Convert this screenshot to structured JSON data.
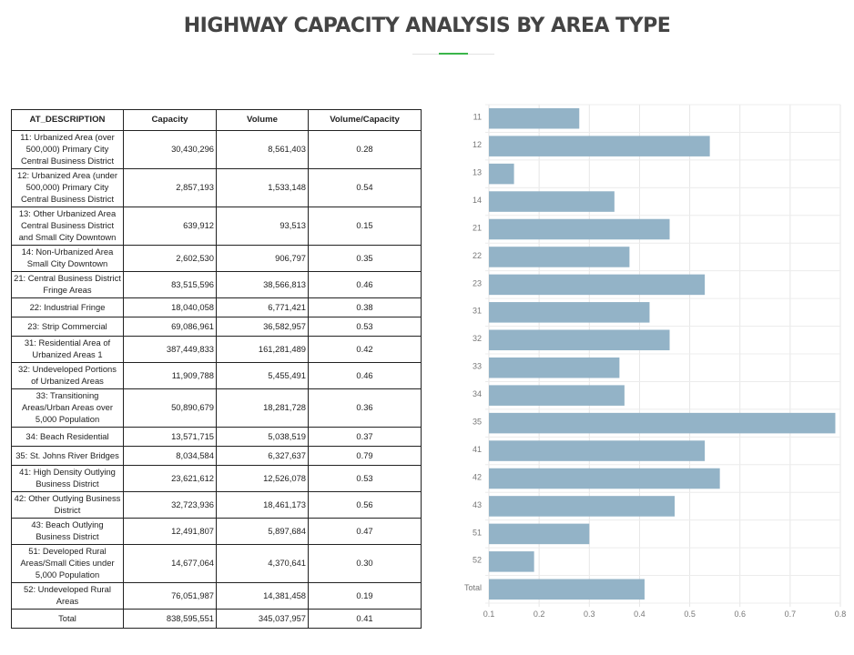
{
  "page": {
    "title": "HIGHWAY CAPACITY ANALYSIS BY AREA TYPE"
  },
  "table": {
    "headers": [
      "AT_DESCRIPTION",
      "Capacity",
      "Volume",
      "Volume/Capacity"
    ],
    "rows": [
      {
        "description": "11: Urbanized Area (over 500,000) Primary City Central Business District",
        "capacity": "30,430,296",
        "volume": "8,561,403",
        "ratio": "0.28"
      },
      {
        "description": "12: Urbanized Area (under 500,000) Primary City Central Business District",
        "capacity": "2,857,193",
        "volume": "1,533,148",
        "ratio": "0.54"
      },
      {
        "description": "13: Other Urbanized Area Central Business District and Small City Downtown",
        "capacity": "639,912",
        "volume": "93,513",
        "ratio": "0.15"
      },
      {
        "description": "14: Non-Urbanized Area Small City Downtown",
        "capacity": "2,602,530",
        "volume": "906,797",
        "ratio": "0.35"
      },
      {
        "description": "21: Central Business District Fringe Areas",
        "capacity": "83,515,596",
        "volume": "38,566,813",
        "ratio": "0.46"
      },
      {
        "description": "22: Industrial Fringe",
        "capacity": "18,040,058",
        "volume": "6,771,421",
        "ratio": "0.38"
      },
      {
        "description": "23: Strip Commercial",
        "capacity": "69,086,961",
        "volume": "36,582,957",
        "ratio": "0.53"
      },
      {
        "description": "31: Residential Area of Urbanized Areas 1",
        "capacity": "387,449,833",
        "volume": "161,281,489",
        "ratio": "0.42"
      },
      {
        "description": "32: Undeveloped Portions of Urbanized Areas",
        "capacity": "11,909,788",
        "volume": "5,455,491",
        "ratio": "0.46"
      },
      {
        "description": "33: Transitioning Areas/Urban Areas over 5,000 Population",
        "capacity": "50,890,679",
        "volume": "18,281,728",
        "ratio": "0.36"
      },
      {
        "description": "34: Beach Residential",
        "capacity": "13,571,715",
        "volume": "5,038,519",
        "ratio": "0.37"
      },
      {
        "description": "35: St. Johns River Bridges",
        "capacity": "8,034,584",
        "volume": "6,327,637",
        "ratio": "0.79"
      },
      {
        "description": "41: High Density Outlying Business District",
        "capacity": "23,621,612",
        "volume": "12,526,078",
        "ratio": "0.53"
      },
      {
        "description": "42: Other Outlying Business District",
        "capacity": "32,723,936",
        "volume": "18,461,173",
        "ratio": "0.56"
      },
      {
        "description": "43: Beach Outlying Business District",
        "capacity": "12,491,807",
        "volume": "5,897,684",
        "ratio": "0.47"
      },
      {
        "description": "51: Developed Rural Areas/Small Cities under 5,000 Population",
        "capacity": "14,677,064",
        "volume": "4,370,641",
        "ratio": "0.30"
      },
      {
        "description": "52: Undeveloped Rural Areas",
        "capacity": "76,051,987",
        "volume": "14,381,458",
        "ratio": "0.19"
      },
      {
        "description": "Total",
        "capacity": "838,595,551",
        "volume": "345,037,957",
        "ratio": "0.41"
      }
    ]
  },
  "chart_data": {
    "type": "bar",
    "orientation": "horizontal",
    "categories": [
      "11",
      "12",
      "13",
      "14",
      "21",
      "22",
      "23",
      "31",
      "32",
      "33",
      "34",
      "35",
      "41",
      "42",
      "43",
      "51",
      "52",
      "Total"
    ],
    "values": [
      0.28,
      0.54,
      0.15,
      0.35,
      0.46,
      0.38,
      0.53,
      0.42,
      0.46,
      0.36,
      0.37,
      0.79,
      0.53,
      0.56,
      0.47,
      0.3,
      0.19,
      0.41
    ],
    "xlim": [
      0.1,
      0.8
    ],
    "xticks": [
      "0.1",
      "0.2",
      "0.3",
      "0.4",
      "0.5",
      "0.6",
      "0.7",
      "0.8"
    ],
    "grid": true,
    "legend": "none",
    "bar_color": "#93b3c7",
    "title": "",
    "xlabel": "",
    "ylabel": ""
  }
}
